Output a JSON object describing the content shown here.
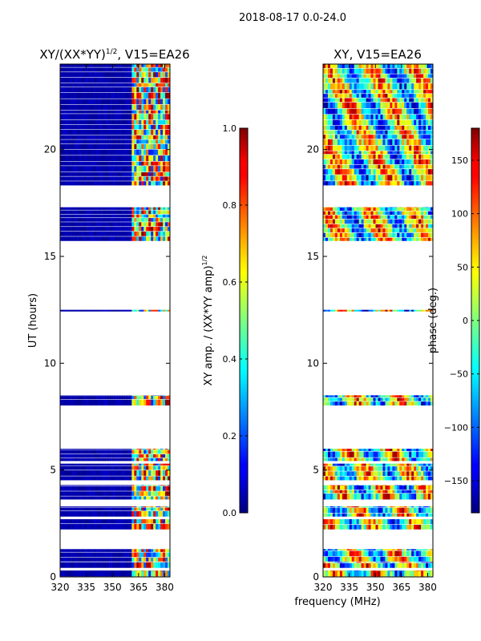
{
  "figure": {
    "suptitle": "2018-08-17 0.0-24.0",
    "xlabel_shared": "frequency (MHz)"
  },
  "chart_data": [
    {
      "type": "heatmap",
      "title": "XY/(XX*YY)",
      "title_sup": "1/2",
      "title_suffix": ", V15=EA26",
      "xlabel": "",
      "ylabel": "UT (hours)",
      "xlim": [
        320,
        383
      ],
      "ylim": [
        0,
        24
      ],
      "xticks": [
        320,
        335,
        350,
        365,
        380
      ],
      "yticks": [
        0,
        5,
        10,
        15,
        20
      ],
      "colormap": "jet",
      "colorbar": {
        "label": "XY amp. / (XX*YY amp)",
        "label_sup": "1/2",
        "range": [
          0.0,
          1.0
        ],
        "ticks": [
          "0.0",
          "0.2",
          "0.4",
          "0.6",
          "0.8",
          "1.0"
        ]
      },
      "data_bands_hours": [
        [
          0.0,
          0.3
        ],
        [
          0.4,
          0.7
        ],
        [
          0.7,
          1.3
        ],
        [
          2.2,
          2.7
        ],
        [
          2.8,
          3.3
        ],
        [
          3.6,
          4.3
        ],
        [
          4.5,
          5.3
        ],
        [
          5.4,
          6.0
        ],
        [
          8.0,
          8.5
        ],
        [
          12.4,
          12.5
        ],
        [
          15.7,
          17.3
        ],
        [
          18.3,
          24.0
        ]
      ],
      "band_summary": "low amplitude (about 0.0-0.1) below 361 MHz; mixed 0.2-1.0 between 361 and 383 MHz"
    },
    {
      "type": "heatmap",
      "title": "XY",
      "title_sup": "",
      "title_suffix": ", V15=EA26",
      "xlabel": "",
      "ylabel": "",
      "xlim": [
        320,
        383
      ],
      "ylim": [
        0,
        24
      ],
      "xticks": [
        320,
        335,
        350,
        365,
        380
      ],
      "yticks": [
        0,
        5,
        10,
        15,
        20
      ],
      "colormap": "jet",
      "colorbar": {
        "label": "phase (deg.)",
        "label_sup": "",
        "range": [
          -180,
          180
        ],
        "ticks": [
          "−150",
          "−100",
          "−50",
          "0",
          "50",
          "100",
          "150"
        ]
      },
      "data_bands_hours": [
        [
          0.0,
          0.3
        ],
        [
          0.4,
          0.7
        ],
        [
          0.7,
          1.3
        ],
        [
          2.2,
          2.7
        ],
        [
          2.8,
          3.3
        ],
        [
          3.6,
          4.3
        ],
        [
          4.5,
          5.3
        ],
        [
          5.4,
          6.0
        ],
        [
          8.0,
          8.5
        ],
        [
          12.4,
          12.5
        ],
        [
          15.7,
          17.3
        ],
        [
          18.3,
          24.0
        ]
      ],
      "band_summary": "phase spread over full -180 to 180 deg range across all frequencies"
    }
  ]
}
